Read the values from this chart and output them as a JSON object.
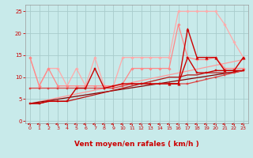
{
  "bg_color": "#c8eaea",
  "grid_color": "#a8cccc",
  "xlabel": "Vent moyen/en rafales ( km/h )",
  "xlabel_color": "#cc0000",
  "xlabel_fontsize": 6.5,
  "ytick_vals": [
    0,
    5,
    10,
    15,
    20,
    25
  ],
  "xtick_vals": [
    0,
    1,
    2,
    3,
    4,
    5,
    6,
    7,
    8,
    9,
    10,
    11,
    12,
    13,
    14,
    15,
    16,
    17,
    18,
    19,
    20,
    21,
    22,
    23
  ],
  "ylim": [
    -0.5,
    26.5
  ],
  "xlim": [
    -0.5,
    23.5
  ],
  "lines": [
    {
      "x": [
        0,
        1,
        2,
        3,
        4,
        5,
        6,
        7,
        8,
        9,
        10,
        11,
        12,
        13,
        14,
        15,
        16,
        17,
        18,
        19,
        20,
        21,
        22,
        23
      ],
      "y": [
        14.5,
        8,
        12,
        12,
        8,
        12,
        8,
        14.5,
        8,
        8,
        14.5,
        14.5,
        14.5,
        14.5,
        14.5,
        14.5,
        25,
        25,
        25,
        25,
        25,
        22,
        18,
        14.5
      ],
      "color": "#ffaaaa",
      "lw": 0.9,
      "marker": "D",
      "ms": 1.8,
      "zorder": 2
    },
    {
      "x": [
        0,
        1,
        2,
        3,
        4,
        5,
        6,
        7,
        8,
        9,
        10,
        11,
        12,
        13,
        14,
        15,
        16,
        17,
        18,
        19,
        20,
        21,
        22,
        23
      ],
      "y": [
        14.5,
        8,
        12,
        8,
        8,
        8,
        8,
        8,
        8,
        8,
        8.5,
        12,
        12,
        12,
        12,
        12,
        22,
        14.5,
        14,
        14,
        14.5,
        12,
        12,
        12
      ],
      "color": "#ff8888",
      "lw": 0.9,
      "marker": "D",
      "ms": 1.8,
      "zorder": 3
    },
    {
      "x": [
        0,
        23
      ],
      "y": [
        4,
        14
      ],
      "color": "#ff9999",
      "lw": 0.9,
      "marker": null,
      "ms": 0,
      "zorder": 2
    },
    {
      "x": [
        0,
        1,
        2,
        3,
        4,
        5,
        6,
        7,
        8,
        9,
        10,
        11,
        12,
        13,
        14,
        15,
        16,
        17,
        18,
        19,
        20,
        21,
        22,
        23
      ],
      "y": [
        4,
        4,
        4.5,
        4.5,
        4.5,
        7.5,
        7.5,
        12,
        7.5,
        8,
        8.5,
        8.5,
        8.5,
        8.5,
        8.5,
        8.5,
        8.5,
        14.5,
        11,
        11,
        11.5,
        11.5,
        11.5,
        11.5
      ],
      "color": "#cc0000",
      "lw": 1.0,
      "marker": "s",
      "ms": 2.0,
      "zorder": 5
    },
    {
      "x": [
        15,
        16,
        17,
        18,
        19,
        20,
        21,
        22,
        23
      ],
      "y": [
        8.5,
        8.5,
        21,
        14.5,
        14.5,
        14.5,
        11.5,
        11.5,
        14.5
      ],
      "color": "#cc0000",
      "lw": 1.0,
      "marker": "^",
      "ms": 2.5,
      "zorder": 5
    },
    {
      "x": [
        0,
        1,
        2,
        3,
        4,
        5,
        6,
        7,
        8,
        9,
        10,
        11,
        12,
        13,
        14,
        15,
        16,
        17,
        18,
        19,
        20,
        21,
        22,
        23
      ],
      "y": [
        7.5,
        7.5,
        7.5,
        7.5,
        7.5,
        7.5,
        7.5,
        7.5,
        7.5,
        7.5,
        8,
        8.5,
        8.5,
        8.5,
        8.5,
        8.5,
        8.5,
        8.5,
        9,
        9.5,
        10,
        10.5,
        11,
        11.5
      ],
      "color": "#dd4444",
      "lw": 0.9,
      "marker": "s",
      "ms": 1.8,
      "zorder": 4
    },
    {
      "x": [
        0,
        23
      ],
      "y": [
        4,
        11.5
      ],
      "color": "#880000",
      "lw": 0.9,
      "marker": null,
      "ms": 0,
      "zorder": 3
    },
    {
      "x": [
        0,
        1,
        2,
        3,
        4,
        5,
        6,
        7,
        8,
        9,
        10,
        11,
        12,
        13,
        14,
        15,
        16,
        17,
        18,
        19,
        20,
        21,
        22,
        23
      ],
      "y": [
        4,
        4,
        4.5,
        4.5,
        4.5,
        5,
        5.5,
        6,
        6.5,
        7,
        7.5,
        8,
        8.5,
        9,
        9.5,
        10,
        10,
        10.5,
        10.5,
        11,
        11,
        11,
        11,
        11.5
      ],
      "color": "#bb1111",
      "lw": 0.9,
      "marker": null,
      "ms": 0,
      "zorder": 3
    }
  ]
}
